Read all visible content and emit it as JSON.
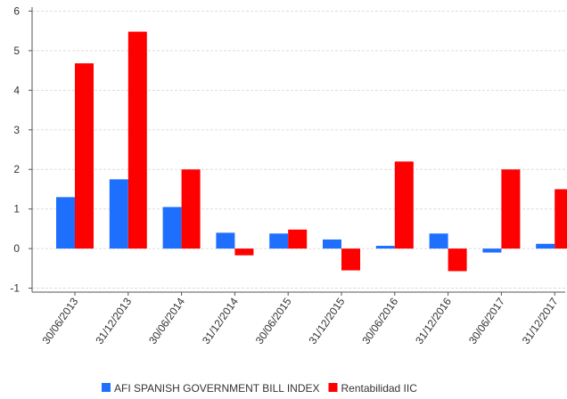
{
  "chart_data": {
    "type": "bar",
    "categories": [
      "30/06/2013",
      "31/12/2013",
      "30/06/2014",
      "31/12/2014",
      "30/06/2015",
      "31/12/2015",
      "30/06/2016",
      "31/12/2016",
      "30/06/2017",
      "31/12/2017"
    ],
    "series": [
      {
        "name": "AFI SPANISH GOVERNMENT BILL INDEX",
        "color": "#1f6fff",
        "values": [
          1.3,
          1.75,
          1.05,
          0.4,
          0.38,
          0.23,
          0.07,
          0.38,
          -0.1,
          0.12
        ]
      },
      {
        "name": "Rentabilidad IIC",
        "color": "#ff0000",
        "values": [
          4.68,
          5.48,
          2.0,
          -0.17,
          0.48,
          -0.55,
          2.2,
          -0.57,
          2.0,
          1.5
        ]
      }
    ],
    "yticks": [
      -1,
      0,
      1,
      2,
      3,
      4,
      5,
      6
    ],
    "ylim": [
      -1.1,
      6.1
    ],
    "title": "",
    "xlabel": "",
    "ylabel": "",
    "grid": true,
    "legend": "bottom"
  }
}
